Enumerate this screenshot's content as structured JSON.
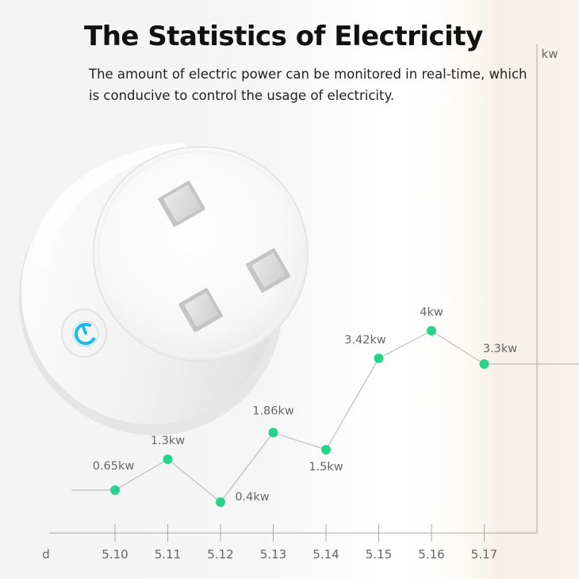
{
  "header": {
    "title": "The Statistics of Electricity",
    "subtitle": "The amount of electric power can be monitored in real-time, which is conducive to control the usage of electricity."
  },
  "colors": {
    "accent": "#27d38a",
    "line": "#bdbdbd",
    "axis": "#a8a8a8",
    "text": "#111111",
    "label": "#666666",
    "power_button": "#21b8e8"
  },
  "product": {
    "power_icon": "power-icon"
  },
  "chart_data": {
    "type": "line",
    "xlabel": "d",
    "ylabel": "kw",
    "categories": [
      "5.10",
      "5.11",
      "5.12",
      "5.13",
      "5.14",
      "5.15",
      "5.16",
      "5.17"
    ],
    "values": [
      0.65,
      1.3,
      0.4,
      1.86,
      1.5,
      3.42,
      4,
      3.3
    ],
    "data_labels": [
      "0.65kw",
      "1.3kw",
      "0.4kw",
      "1.86kw",
      "1.5kw",
      "3.42kw",
      "4kw",
      "3.3kw"
    ],
    "grid": false
  }
}
